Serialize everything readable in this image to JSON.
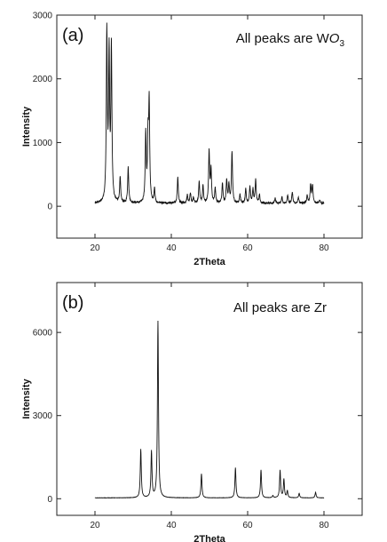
{
  "chart_data": [
    {
      "type": "line",
      "panel_label": "(a)",
      "annotation": {
        "prefix": "All peaks are W",
        "italic": "O",
        "subscript": "3"
      },
      "xlabel": "2Theta",
      "ylabel": "Intensity",
      "xlim": [
        10,
        90
      ],
      "ylim": [
        -500,
        3000
      ],
      "xticks": [
        "20",
        "40",
        "60",
        "80"
      ],
      "yticks": [
        "0",
        "1000",
        "2000",
        "3000"
      ],
      "grid": false,
      "baseline": 45,
      "x_range": [
        20,
        80
      ],
      "peaks": [
        {
          "x": 23.1,
          "y": 2700
        },
        {
          "x": 23.7,
          "y": 2320
        },
        {
          "x": 24.3,
          "y": 2440
        },
        {
          "x": 26.6,
          "y": 450
        },
        {
          "x": 28.7,
          "y": 600
        },
        {
          "x": 33.3,
          "y": 1130
        },
        {
          "x": 33.9,
          "y": 980
        },
        {
          "x": 34.2,
          "y": 1550
        },
        {
          "x": 35.6,
          "y": 260
        },
        {
          "x": 41.7,
          "y": 450
        },
        {
          "x": 44.2,
          "y": 170
        },
        {
          "x": 45.0,
          "y": 210
        },
        {
          "x": 45.8,
          "y": 130
        },
        {
          "x": 47.3,
          "y": 380
        },
        {
          "x": 48.3,
          "y": 320
        },
        {
          "x": 49.9,
          "y": 860
        },
        {
          "x": 50.4,
          "y": 560
        },
        {
          "x": 51.5,
          "y": 280
        },
        {
          "x": 53.4,
          "y": 350
        },
        {
          "x": 54.5,
          "y": 410
        },
        {
          "x": 55.1,
          "y": 330
        },
        {
          "x": 55.9,
          "y": 850
        },
        {
          "x": 58.0,
          "y": 180
        },
        {
          "x": 59.5,
          "y": 270
        },
        {
          "x": 60.6,
          "y": 300
        },
        {
          "x": 61.4,
          "y": 260
        },
        {
          "x": 62.1,
          "y": 410
        },
        {
          "x": 63.1,
          "y": 180
        },
        {
          "x": 67.2,
          "y": 130
        },
        {
          "x": 69.0,
          "y": 140
        },
        {
          "x": 70.5,
          "y": 170
        },
        {
          "x": 71.7,
          "y": 220
        },
        {
          "x": 73.3,
          "y": 140
        },
        {
          "x": 75.6,
          "y": 160
        },
        {
          "x": 76.5,
          "y": 340
        },
        {
          "x": 77.0,
          "y": 330
        },
        {
          "x": 78.9,
          "y": 100
        }
      ]
    },
    {
      "type": "line",
      "panel_label": "(b)",
      "annotation": {
        "prefix": "All peaks are Zr",
        "italic": "",
        "subscript": ""
      },
      "xlabel": "2Theta",
      "ylabel": "Intensity",
      "xlim": [
        10,
        90
      ],
      "ylim": [
        -600,
        7800
      ],
      "xticks": [
        "20",
        "40",
        "60",
        "80"
      ],
      "yticks": [
        "0",
        "3000",
        "6000"
      ],
      "grid": false,
      "baseline": 30,
      "x_range": [
        20,
        80
      ],
      "peaks": [
        {
          "x": 32.0,
          "y": 1780
        },
        {
          "x": 34.8,
          "y": 1700
        },
        {
          "x": 36.5,
          "y": 6400
        },
        {
          "x": 47.9,
          "y": 900
        },
        {
          "x": 56.8,
          "y": 1120
        },
        {
          "x": 63.5,
          "y": 1040
        },
        {
          "x": 66.6,
          "y": 110
        },
        {
          "x": 68.5,
          "y": 1020
        },
        {
          "x": 69.5,
          "y": 700
        },
        {
          "x": 70.4,
          "y": 280
        },
        {
          "x": 73.5,
          "y": 190
        },
        {
          "x": 77.8,
          "y": 230
        }
      ]
    }
  ]
}
